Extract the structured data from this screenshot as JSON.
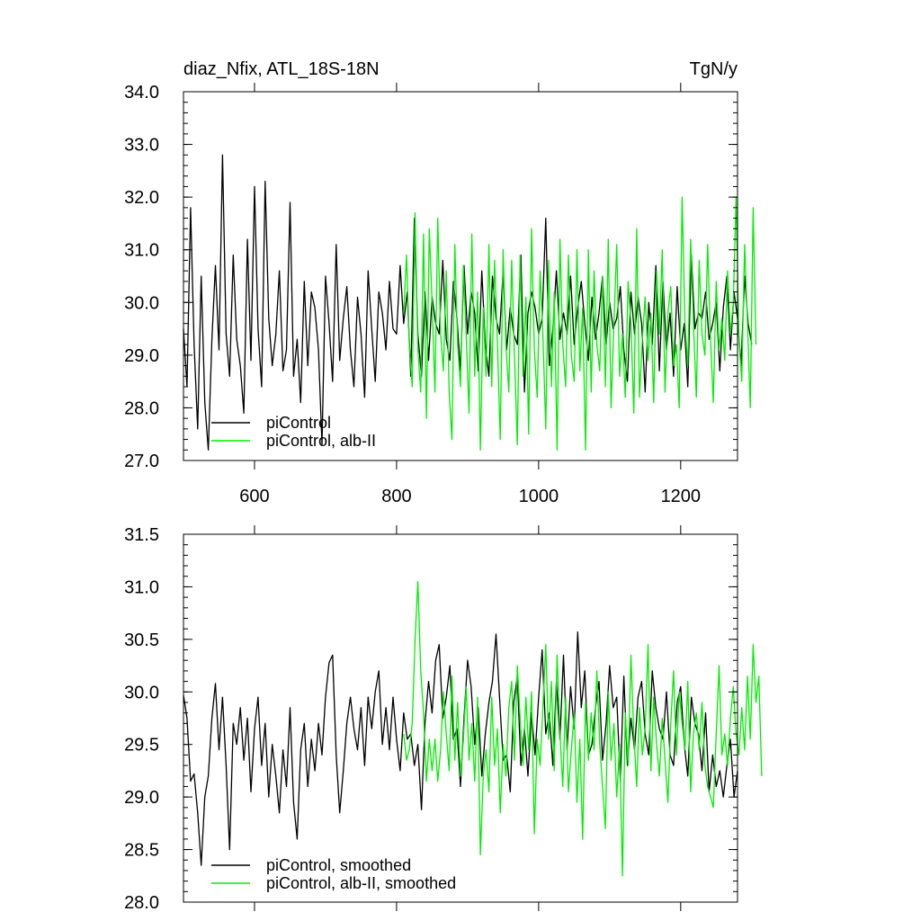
{
  "colors": {
    "series_a": "#000000",
    "series_b": "#00ee00",
    "axis": "#000000",
    "background": "#ffffff"
  },
  "chart_data": [
    {
      "type": "line",
      "title": "diaz_Nfix, ATL_18S-18N",
      "units": "TgN/y",
      "xlabel": "",
      "ylabel": "",
      "xlim": [
        500,
        1280
      ],
      "ylim": [
        27.0,
        34.0
      ],
      "x_ticks": [
        600,
        800,
        1000,
        1200
      ],
      "y_ticks": [
        "27.0",
        "28.0",
        "29.0",
        "30.0",
        "31.0",
        "32.0",
        "33.0",
        "34.0"
      ],
      "grid": false,
      "legend_position": "bottom-left",
      "series": [
        {
          "name": "piControl",
          "color": "#000000",
          "x_start": 500,
          "x_step": 5,
          "values": [
            29.5,
            28.4,
            31.8,
            29.2,
            27.6,
            30.5,
            28.1,
            27.2,
            29.3,
            30.7,
            29.1,
            32.8,
            29.4,
            28.6,
            30.9,
            29.3,
            28.8,
            27.9,
            31.2,
            28.9,
            32.2,
            29.5,
            28.4,
            32.3,
            29.7,
            28.8,
            29.4,
            30.6,
            28.7,
            29.1,
            31.9,
            28.6,
            29.3,
            28.1,
            30.4,
            28.8,
            30.2,
            29.9,
            29.1,
            27.3,
            30.5,
            29.6,
            28.5,
            31.1,
            28.9,
            29.7,
            30.3,
            29.1,
            28.4,
            30.1,
            29.4,
            28.2,
            30.6,
            29.5,
            28.5,
            30.2,
            29.8,
            29.1,
            30.4,
            29.5,
            29.4,
            30.7,
            29.6,
            30.2,
            28.6,
            31.6,
            29.4,
            28.6,
            30.2,
            28.9,
            30.1,
            29.6,
            29.4,
            30.8,
            29.3,
            28.9,
            30.4,
            29.7,
            28.7,
            30.7,
            29.4,
            30.2,
            29.8,
            28.7,
            30.6,
            29.2,
            28.6,
            30.5,
            29.7,
            29.4,
            30.6,
            29.1,
            29.9,
            29.4,
            29.2,
            30.9,
            28.3,
            29.8,
            30.2,
            29.9,
            29.4,
            29.7,
            31.6,
            28.8,
            29.5,
            30.6,
            29.3,
            29.8,
            29.4,
            30.5,
            29.2,
            29.9,
            30.4,
            29.6,
            28.9,
            30.1,
            29.3,
            29.8,
            30.5,
            29.2,
            30.0,
            29.5,
            29.7,
            30.3,
            29.1,
            28.5,
            30.2,
            29.4,
            30.1,
            29.6,
            28.3,
            30.0,
            29.2,
            30.7,
            28.7,
            30.4,
            29.1,
            29.8,
            28.6,
            30.3,
            29.1,
            29.6,
            28.4,
            30.9,
            29.5,
            29.8,
            29.7,
            30.2,
            29.3,
            29.6,
            30.0,
            28.7,
            29.9,
            30.5,
            29.1,
            30.2,
            29.7,
            28.8,
            30.5,
            29.6,
            29.2
          ]
        },
        {
          "name": "piControl, alb-II",
          "color": "#00ee00",
          "x_start": 810,
          "x_step": 4,
          "values": [
            29.8,
            30.9,
            29.2,
            28.4,
            31.7,
            29.1,
            28.3,
            31.3,
            27.8,
            31.4,
            30.0,
            28.3,
            31.6,
            29.4,
            28.7,
            30.6,
            28.3,
            27.4,
            31.1,
            29.2,
            28.4,
            30.7,
            29.4,
            27.9,
            31.3,
            28.6,
            30.2,
            27.2,
            29.9,
            28.6,
            31.1,
            28.4,
            30.8,
            29.2,
            27.4,
            31.0,
            29.2,
            28.3,
            30.8,
            29.0,
            27.3,
            30.9,
            28.6,
            30.1,
            27.5,
            31.4,
            29.1,
            28.2,
            30.6,
            29.4,
            27.6,
            30.8,
            28.4,
            30.2,
            27.2,
            31.2,
            29.2,
            28.4,
            30.9,
            29.0,
            28.5,
            31.0,
            28.7,
            29.9,
            27.2,
            31.0,
            28.3,
            30.6,
            29.2,
            28.7,
            30.5,
            28.4,
            31.2,
            28.0,
            29.6,
            31.1,
            28.6,
            29.4,
            28.2,
            30.4,
            29.6,
            27.9,
            31.4,
            28.2,
            29.3,
            30.1,
            28.9,
            29.8,
            28.1,
            30.6,
            29.4,
            31.0,
            28.3,
            29.8,
            30.3,
            28.8,
            29.2,
            28.0,
            32.0,
            29.6,
            28.8,
            31.2,
            29.6,
            28.2,
            30.8,
            29.4,
            29.0,
            31.1,
            29.3,
            28.1,
            30.4,
            29.1,
            29.7,
            28.9,
            30.6,
            29.4,
            30.0,
            32.0,
            29.3,
            28.5,
            31.1,
            29.6,
            28.0,
            31.8,
            29.2
          ]
        }
      ]
    },
    {
      "type": "line",
      "title": "",
      "xlabel": "",
      "ylabel": "",
      "xlim": [
        500,
        1280
      ],
      "ylim": [
        28.0,
        31.5
      ],
      "y_ticks": [
        "28.0",
        "28.5",
        "29.0",
        "29.5",
        "30.0",
        "30.5",
        "31.0",
        "31.5"
      ],
      "grid": false,
      "legend_position": "bottom-left",
      "series": [
        {
          "name": "piControl, smoothed",
          "color": "#000000",
          "x_start": 500,
          "x_step": 5,
          "values": [
            29.97,
            29.75,
            29.15,
            29.22,
            28.85,
            28.35,
            29.0,
            29.2,
            29.75,
            30.08,
            29.45,
            29.95,
            29.3,
            28.5,
            29.7,
            29.5,
            29.85,
            29.35,
            29.75,
            29.05,
            29.65,
            29.95,
            29.3,
            29.7,
            29.0,
            29.5,
            29.2,
            28.85,
            29.45,
            29.1,
            29.85,
            28.95,
            28.6,
            29.45,
            29.7,
            29.1,
            29.55,
            29.25,
            29.7,
            29.4,
            29.95,
            30.28,
            30.35,
            29.4,
            28.85,
            29.25,
            29.7,
            29.95,
            29.65,
            29.45,
            29.85,
            29.3,
            29.95,
            29.65,
            30.0,
            30.2,
            29.5,
            29.85,
            29.45,
            29.95,
            29.55,
            29.25,
            29.8,
            29.55,
            29.6,
            29.3,
            29.5,
            28.88,
            29.7,
            30.1,
            29.8,
            30.3,
            30.45,
            29.75,
            29.95,
            30.25,
            29.55,
            29.65,
            29.1,
            29.75,
            30.3,
            30.05,
            29.5,
            29.85,
            29.2,
            29.6,
            29.9,
            30.1,
            30.55,
            29.95,
            29.35,
            29.4,
            29.05,
            29.9,
            30.15,
            29.3,
            29.65,
            29.2,
            29.8,
            29.4,
            29.95,
            30.4,
            29.6,
            29.8,
            29.3,
            30.1,
            29.55,
            30.35,
            29.45,
            30.05,
            29.65,
            30.57,
            29.85,
            30.2,
            29.4,
            29.5,
            29.85,
            30.1,
            29.35,
            29.7,
            30.25,
            29.85,
            29.95,
            29.15,
            30.15,
            29.3,
            29.75,
            29.45,
            29.95,
            30.1,
            29.6,
            29.4,
            30.2,
            29.85,
            29.65,
            29.55,
            30.0,
            29.4,
            29.3,
            29.9,
            30.05,
            29.5,
            29.2,
            29.95,
            29.7,
            29.6,
            29.25,
            29.8,
            29.05,
            29.4,
            29.1,
            29.25,
            29.0,
            29.3,
            29.55,
            29.0,
            29.25
          ]
        },
        {
          "name": "piControl, alb-II, smoothed",
          "color": "#00ee00",
          "x_start": 810,
          "x_step": 4,
          "values": [
            29.6,
            29.35,
            29.45,
            29.7,
            30.5,
            31.05,
            30.2,
            29.8,
            29.15,
            29.55,
            29.25,
            29.55,
            29.15,
            29.45,
            30.0,
            29.6,
            29.25,
            30.15,
            29.35,
            29.9,
            29.2,
            29.55,
            30.05,
            29.35,
            29.7,
            29.15,
            29.95,
            28.45,
            29.2,
            29.45,
            29.05,
            29.95,
            29.3,
            29.65,
            28.85,
            29.5,
            29.2,
            29.85,
            30.1,
            29.35,
            30.25,
            29.75,
            29.3,
            29.95,
            29.45,
            30.0,
            28.65,
            29.55,
            29.3,
            29.85,
            30.45,
            29.55,
            30.1,
            29.25,
            30.35,
            29.6,
            29.1,
            29.95,
            29.05,
            29.45,
            29.8,
            28.95,
            29.55,
            28.6,
            29.9,
            29.35,
            29.8,
            29.45,
            30.2,
            29.5,
            29.1,
            28.7,
            30.0,
            29.35,
            29.7,
            29.0,
            29.5,
            28.25,
            29.8,
            29.3,
            30.35,
            29.6,
            29.1,
            29.85,
            29.4,
            29.65,
            30.45,
            29.25,
            29.95,
            29.5,
            29.2,
            29.75,
            29.35,
            28.95,
            29.7,
            30.2,
            29.4,
            30.0,
            29.7,
            29.45,
            30.1,
            29.05,
            29.6,
            29.8,
            29.45,
            29.9,
            29.3,
            29.1,
            29.0,
            28.9,
            29.6,
            30.25,
            29.4,
            29.6,
            29.3,
            29.75,
            30.05,
            29.6,
            29.4,
            29.85,
            29.45,
            30.15,
            29.55,
            30.45,
            29.9,
            30.15,
            29.2
          ]
        }
      ]
    }
  ]
}
